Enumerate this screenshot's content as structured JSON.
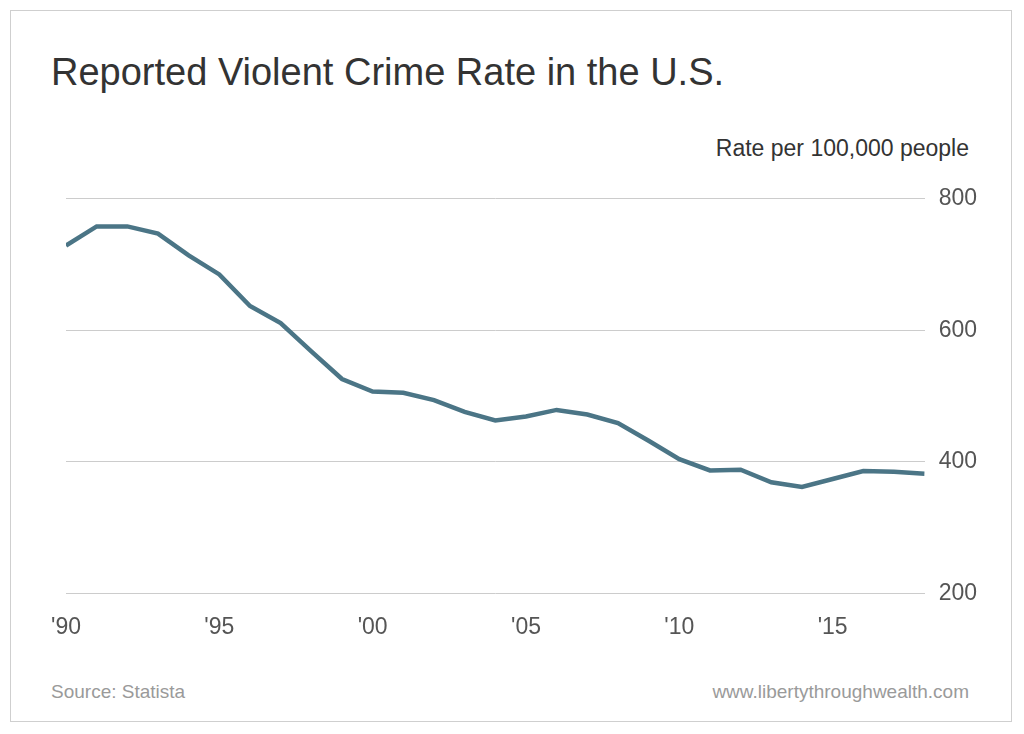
{
  "chart_data": {
    "type": "line",
    "title": "Reported Violent Crime Rate in the U.S.",
    "y_label": "Rate per 100,000 people",
    "source": "Source: Statista",
    "credit": "www.libertythroughwealth.com",
    "categories": [
      "'90",
      null,
      null,
      null,
      null,
      "'95",
      null,
      null,
      null,
      null,
      "'00",
      null,
      null,
      null,
      null,
      "'05",
      null,
      null,
      null,
      null,
      "'10",
      null,
      null,
      null,
      null,
      "'15",
      null,
      null,
      null
    ],
    "values": [
      729,
      758,
      758,
      747,
      714,
      685,
      637,
      611,
      568,
      526,
      507,
      505,
      494,
      476,
      463,
      469,
      479,
      472,
      459,
      432,
      404,
      387,
      388,
      369,
      362,
      374,
      386,
      385,
      382
    ],
    "color": "#4b7586",
    "ylim": [
      200,
      800
    ],
    "yticks": [
      200,
      400,
      600,
      800
    ],
    "grid": true
  }
}
